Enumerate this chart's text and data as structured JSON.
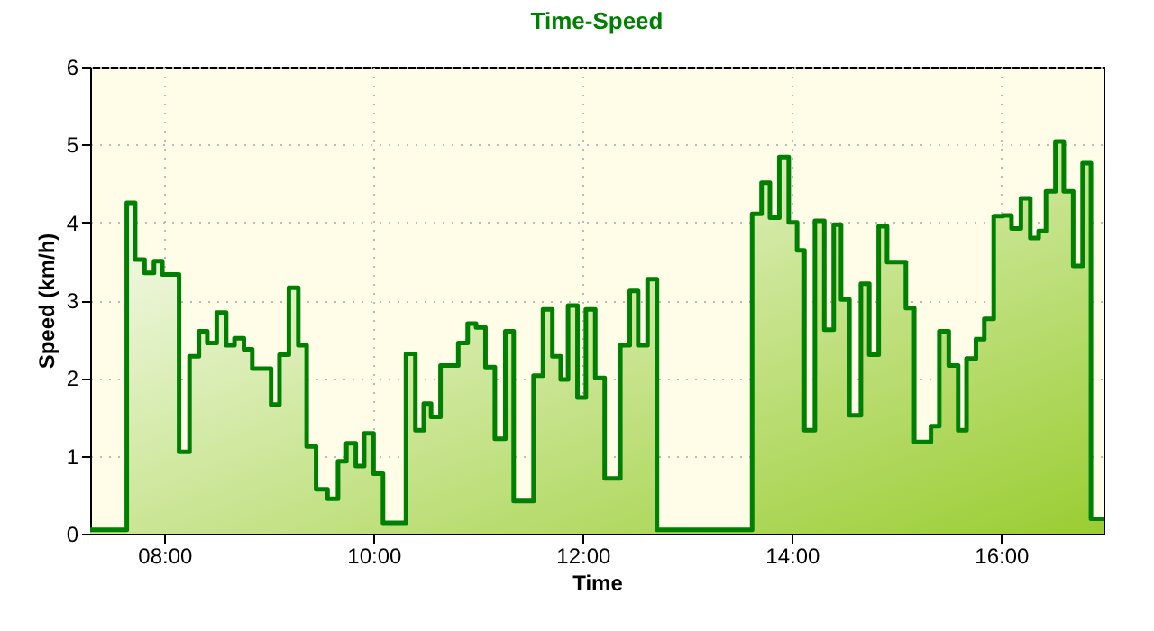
{
  "chart_data": {
    "type": "area",
    "title": "Time-Speed",
    "xlabel": "Time",
    "ylabel": "Speed (km/h)",
    "x": [
      7.29,
      7.64,
      7.64,
      7.72,
      7.72,
      7.81,
      7.81,
      7.9,
      7.9,
      7.98,
      7.98,
      8.14,
      8.14,
      8.24,
      8.24,
      8.33,
      8.33,
      8.41,
      8.41,
      8.5,
      8.5,
      8.59,
      8.59,
      8.67,
      8.67,
      8.76,
      8.76,
      8.84,
      8.84,
      9.02,
      9.02,
      9.1,
      9.1,
      9.19,
      9.19,
      9.28,
      9.28,
      9.36,
      9.36,
      9.45,
      9.45,
      9.56,
      9.56,
      9.66,
      9.66,
      9.74,
      9.74,
      9.83,
      9.83,
      9.91,
      9.91,
      10.0,
      10.0,
      10.09,
      10.09,
      10.31,
      10.31,
      10.4,
      10.4,
      10.48,
      10.48,
      10.55,
      10.55,
      10.64,
      10.64,
      10.81,
      10.81,
      10.9,
      10.9,
      10.98,
      10.98,
      11.07,
      11.07,
      11.16,
      11.16,
      11.26,
      11.26,
      11.34,
      11.34,
      11.53,
      11.53,
      11.62,
      11.62,
      11.71,
      11.71,
      11.79,
      11.79,
      11.86,
      11.86,
      11.95,
      11.95,
      12.03,
      12.03,
      12.12,
      12.12,
      12.21,
      12.21,
      12.36,
      12.36,
      12.45,
      12.45,
      12.53,
      12.53,
      12.62,
      12.62,
      12.71,
      12.71,
      13.62,
      13.62,
      13.71,
      13.71,
      13.79,
      13.79,
      13.88,
      13.88,
      13.97,
      13.97,
      14.05,
      14.05,
      14.12,
      14.12,
      14.22,
      14.22,
      14.31,
      14.31,
      14.4,
      14.4,
      14.47,
      14.47,
      14.55,
      14.55,
      14.66,
      14.66,
      14.74,
      14.74,
      14.83,
      14.83,
      14.91,
      14.91,
      15.09,
      15.09,
      15.17,
      15.17,
      15.33,
      15.33,
      15.41,
      15.41,
      15.5,
      15.5,
      15.59,
      15.59,
      15.67,
      15.67,
      15.76,
      15.76,
      15.84,
      15.84,
      15.93,
      15.93,
      16.02,
      16.02,
      16.1,
      16.1,
      16.19,
      16.19,
      16.28,
      16.28,
      16.36,
      16.36,
      16.43,
      16.43,
      16.52,
      16.52,
      16.6,
      16.6,
      16.69,
      16.69,
      16.78,
      16.78,
      16.86,
      16.86,
      16.98
    ],
    "series": [
      {
        "color": "#008000",
        "values": [
          0.05,
          0.05,
          4.25,
          4.25,
          3.52,
          3.52,
          3.35,
          3.35,
          3.5,
          3.5,
          3.33,
          3.33,
          1.05,
          1.05,
          2.28,
          2.28,
          2.6,
          2.6,
          2.45,
          2.45,
          2.84,
          2.84,
          2.42,
          2.42,
          2.51,
          2.51,
          2.37,
          2.37,
          2.12,
          2.12,
          1.66,
          1.66,
          2.3,
          2.3,
          3.16,
          3.16,
          2.42,
          2.42,
          1.12,
          1.12,
          0.57,
          0.57,
          0.45,
          0.45,
          0.93,
          0.93,
          1.16,
          1.16,
          0.87,
          0.87,
          1.29,
          1.29,
          0.77,
          0.77,
          0.14,
          0.14,
          2.31,
          2.31,
          1.33,
          1.33,
          1.67,
          1.67,
          1.5,
          1.5,
          2.16,
          2.16,
          2.45,
          2.45,
          2.7,
          2.7,
          2.65,
          2.65,
          2.14,
          2.14,
          1.22,
          1.22,
          2.6,
          2.6,
          0.42,
          0.42,
          2.03,
          2.03,
          2.88,
          2.88,
          2.28,
          2.28,
          1.98,
          1.98,
          2.93,
          2.93,
          1.75,
          1.75,
          2.88,
          2.88,
          2.0,
          2.0,
          0.71,
          0.71,
          2.42,
          2.42,
          3.12,
          3.12,
          2.42,
          2.42,
          3.27,
          3.27,
          0.05,
          0.05,
          4.11,
          4.11,
          4.51,
          4.51,
          4.06,
          4.06,
          4.84,
          4.84,
          4.0,
          4.0,
          3.64,
          3.64,
          1.33,
          1.33,
          4.02,
          4.02,
          2.62,
          2.62,
          3.97,
          3.97,
          3.01,
          3.01,
          1.52,
          1.52,
          3.21,
          3.21,
          2.3,
          2.3,
          3.95,
          3.95,
          3.49,
          3.49,
          2.9,
          2.9,
          1.18,
          1.18,
          1.38,
          1.38,
          2.6,
          2.6,
          2.16,
          2.16,
          1.33,
          1.33,
          2.25,
          2.25,
          2.5,
          2.5,
          2.76,
          2.76,
          4.08,
          4.08,
          4.09,
          4.09,
          3.92,
          3.92,
          4.31,
          4.31,
          3.8,
          3.8,
          3.89,
          3.89,
          4.4,
          4.4,
          5.04,
          5.04,
          4.4,
          4.4,
          3.44,
          3.44,
          4.76,
          4.76,
          0.19,
          0.19
        ]
      }
    ],
    "xlim": [
      7.29,
      16.98
    ],
    "xticks": [
      {
        "value": 8,
        "label": "08:00"
      },
      {
        "value": 10,
        "label": "10:00"
      },
      {
        "value": 12,
        "label": "12:00"
      },
      {
        "value": 14,
        "label": "14:00"
      },
      {
        "value": 16,
        "label": "16:00"
      }
    ],
    "ylim": [
      0,
      6
    ],
    "yticks": [
      0,
      1,
      2,
      3,
      4,
      5,
      6
    ],
    "grid": true,
    "line_style": "solid",
    "marker": "none"
  }
}
